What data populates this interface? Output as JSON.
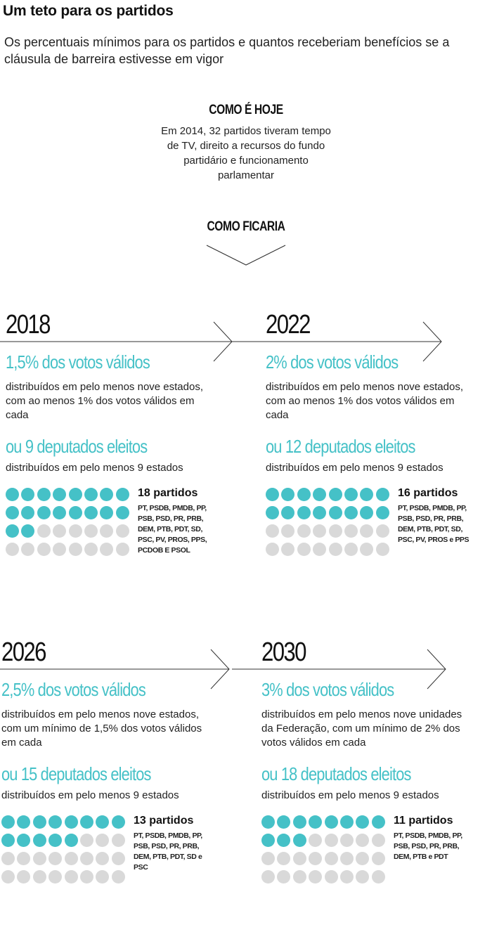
{
  "header": {
    "title": "Um teto para os partidos",
    "subtitle": "Os percentuais mínimos para os partidos e quantos receberiam benefícios se a cláusula de barreira estivesse em vigor"
  },
  "now": {
    "heading": "COMO É HOJE",
    "text": "Em 2014, 32 partidos tiveram tempo de TV, direito a recursos do fundo partidário e funcionamento parlamentar"
  },
  "future": {
    "heading": "COMO FICARIA"
  },
  "colors": {
    "accent": "#45c1c7",
    "inactive": "#d9d9d9"
  },
  "chart_data": {
    "type": "dot-matrix",
    "total_parties": 32,
    "blocks": [
      {
        "year": "2018",
        "pct": "1,5% dos votos válidos",
        "desc": "distribuídos em pelo menos nove estados, com ao menos 1% dos votos válidos em cada",
        "dep": "ou 9 deputados eleitos",
        "dep_desc": "distribuídos em pelo menos 9 estados",
        "count": 18,
        "count_label": "18 partidos",
        "list": "PT, PSDB, PMDB, PP, PSB, PSD, PR, PRB, DEM, PTB, PDT, SD, PSC, PV, PROS, PPS, PCDOB E PSOL"
      },
      {
        "year": "2022",
        "pct": "2% dos votos válidos",
        "desc": "distribuídos em pelo menos nove estados, com ao menos 1% dos votos válidos em cada",
        "dep": "ou 12 deputados eleitos",
        "dep_desc": "distribuídos em pelo menos 9 estados",
        "count": 16,
        "count_label": "16 partidos",
        "list": "PT, PSDB, PMDB, PP, PSB, PSD, PR, PRB, DEM, PTB, PDT, SD, PSC, PV, PROS e PPS"
      },
      {
        "year": "2026",
        "pct": "2,5% dos votos válidos",
        "desc": "distribuídos em pelo menos nove estados, com um mínimo de 1,5% dos votos válidos em cada",
        "dep": "ou 15 deputados eleitos",
        "dep_desc": "distribuídos em pelo menos 9 estados",
        "count": 13,
        "count_label": "13 partidos",
        "list": "PT, PSDB, PMDB, PP, PSB, PSD, PR, PRB, DEM, PTB, PDT, SD e PSC"
      },
      {
        "year": "2030",
        "pct": "3% dos votos válidos",
        "desc": "distribuídos em pelo menos nove unidades da Federação, com um mínimo de 2% dos votos válidos em cada",
        "dep": "ou 18 deputados eleitos",
        "dep_desc": "distribuídos em pelo menos 9 estados",
        "count": 11,
        "count_label": "11 partidos",
        "list": "PT, PSDB, PMDB, PP, PSB, PSD, PR, PRB, DEM, PTB e PDT"
      }
    ]
  }
}
